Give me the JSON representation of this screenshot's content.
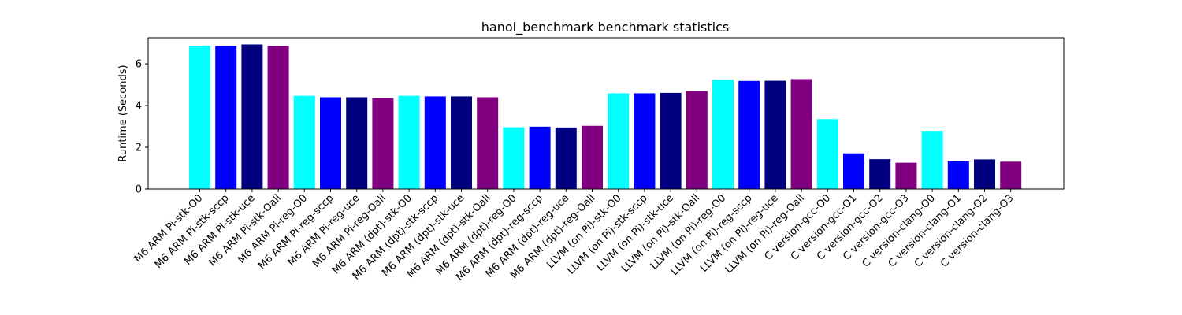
{
  "chart_data": {
    "type": "bar",
    "title": "hanoi_benchmark benchmark statistics",
    "xlabel": "",
    "ylabel": "Runtime (Seconds)",
    "ylim": [
      0,
      7.25
    ],
    "yticks": [
      0,
      2,
      4,
      6
    ],
    "grid": false,
    "categories": [
      "M6 ARM Pi-stk-O0",
      "M6 ARM Pi-stk-sccp",
      "M6 ARM Pi-stk-uce",
      "M6 ARM Pi-stk-Oall",
      "M6 ARM Pi-reg-O0",
      "M6 ARM Pi-reg-sccp",
      "M6 ARM Pi-reg-uce",
      "M6 ARM Pi-reg-Oall",
      "M6 ARM (dpt)-stk-O0",
      "M6 ARM (dpt)-stk-sccp",
      "M6 ARM (dpt)-stk-uce",
      "M6 ARM (dpt)-stk-Oall",
      "M6 ARM (dpt)-reg-O0",
      "M6 ARM (dpt)-reg-sccp",
      "M6 ARM (dpt)-reg-uce",
      "M6 ARM (dpt)-reg-Oall",
      "LLVM (on Pi)-stk-O0",
      "LLVM (on Pi)-stk-sccp",
      "LLVM (on Pi)-stk-uce",
      "LLVM (on Pi)-stk-Oall",
      "LLVM (on Pi)-reg-O0",
      "LLVM (on Pi)-reg-sccp",
      "LLVM (on Pi)-reg-uce",
      "LLVM (on Pi)-reg-Oall",
      "C version-gcc-O0",
      "C version-gcc-O1",
      "C version-gcc-O2",
      "C version-gcc-O3",
      "C version-clang-O0",
      "C version-clang-O1",
      "C version-clang-O2",
      "C version-clang-O3"
    ],
    "values": [
      6.87,
      6.86,
      6.93,
      6.86,
      4.47,
      4.4,
      4.4,
      4.36,
      4.47,
      4.44,
      4.44,
      4.4,
      2.96,
      2.99,
      2.95,
      3.03,
      4.59,
      4.59,
      4.61,
      4.7,
      5.24,
      5.18,
      5.19,
      5.27,
      3.35,
      1.71,
      1.43,
      1.26,
      2.79,
      1.33,
      1.42,
      1.31
    ],
    "colors": [
      "#00ffff",
      "#0000ff",
      "#000080",
      "#800080",
      "#00ffff",
      "#0000ff",
      "#000080",
      "#800080",
      "#00ffff",
      "#0000ff",
      "#000080",
      "#800080",
      "#00ffff",
      "#0000ff",
      "#000080",
      "#800080",
      "#00ffff",
      "#0000ff",
      "#000080",
      "#800080",
      "#00ffff",
      "#0000ff",
      "#000080",
      "#800080",
      "#00ffff",
      "#0000ff",
      "#000080",
      "#800080",
      "#00ffff",
      "#0000ff",
      "#000080",
      "#800080"
    ]
  }
}
